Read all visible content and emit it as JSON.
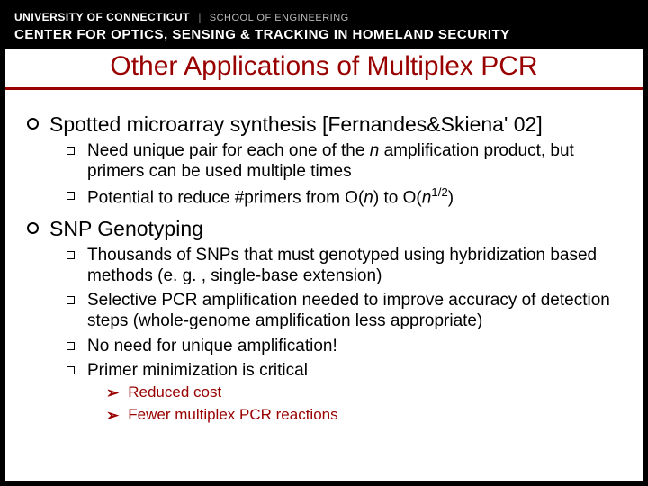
{
  "header": {
    "university": "UNIVERSITY OF CONNECTICUT",
    "school": "SCHOOL OF ENGINEERING",
    "center": "CENTER FOR OPTICS, SENSING & TRACKING IN HOMELAND SECURITY"
  },
  "title": "Other Applications of Multiplex PCR",
  "colors": {
    "accent": "#990000",
    "header_bg": "#000000",
    "text": "#000000",
    "bg": "#ffffff"
  },
  "items": [
    {
      "text_html": "Spotted microarray synthesis [Fernandes&Skiena' 02]",
      "sub": [
        {
          "text_html": "Need unique pair for each one of the <em class='italic'>n</em> amplification product, but primers can be used multiple times"
        },
        {
          "text_html": "Potential to reduce #primers from O(<em class='italic'>n</em>) to O(<em class='italic'>n</em><sup>1/2</sup>)"
        }
      ]
    },
    {
      "text_html": "SNP Genotyping",
      "sub": [
        {
          "text_html": "Thousands of SNPs that must genotyped using hybridization based methods (e. g. , single-base extension)"
        },
        {
          "text_html": "Selective PCR amplification needed to improve accuracy of detection steps (whole-genome amplification less appropriate)"
        },
        {
          "text_html": "No need for unique amplification!"
        },
        {
          "text_html": "Primer minimization is critical",
          "sub": [
            {
              "text_html": "Reduced cost"
            },
            {
              "text_html": "Fewer multiplex PCR reactions"
            }
          ]
        }
      ]
    }
  ]
}
